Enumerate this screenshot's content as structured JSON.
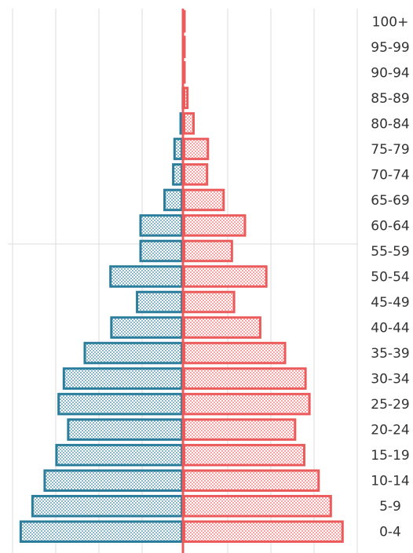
{
  "chart_data": {
    "type": "bar",
    "orientation": "horizontal",
    "layout": "population-pyramid",
    "title": "",
    "xlabel": "",
    "ylabel": "",
    "categories": [
      "0-4",
      "5-9",
      "10-14",
      "15-19",
      "20-24",
      "25-29",
      "30-34",
      "35-39",
      "40-44",
      "45-49",
      "50-54",
      "55-59",
      "60-64",
      "65-69",
      "70-74",
      "75-79",
      "80-84",
      "85-89",
      "90-94",
      "95-99",
      "100+"
    ],
    "series": [
      {
        "side": "left",
        "color": "#2b7d9c",
        "values": [
          37.5,
          34.8,
          32.0,
          29.3,
          26.6,
          28.8,
          27.6,
          22.8,
          16.7,
          10.8,
          16.9,
          10.0,
          10.0,
          4.5,
          2.5,
          2.2,
          0.8,
          0.3,
          0.1,
          0,
          0
        ]
      },
      {
        "side": "right",
        "color": "#ec5b5b",
        "values": [
          36.9,
          34.2,
          31.4,
          28.1,
          26.0,
          29.3,
          28.4,
          23.7,
          18.0,
          12.0,
          19.4,
          11.5,
          14.5,
          9.6,
          5.8,
          6.0,
          2.7,
          1.3,
          0.4,
          0.2,
          0.1
        ]
      }
    ],
    "xlim": [
      0,
      40
    ],
    "grid": true
  }
}
